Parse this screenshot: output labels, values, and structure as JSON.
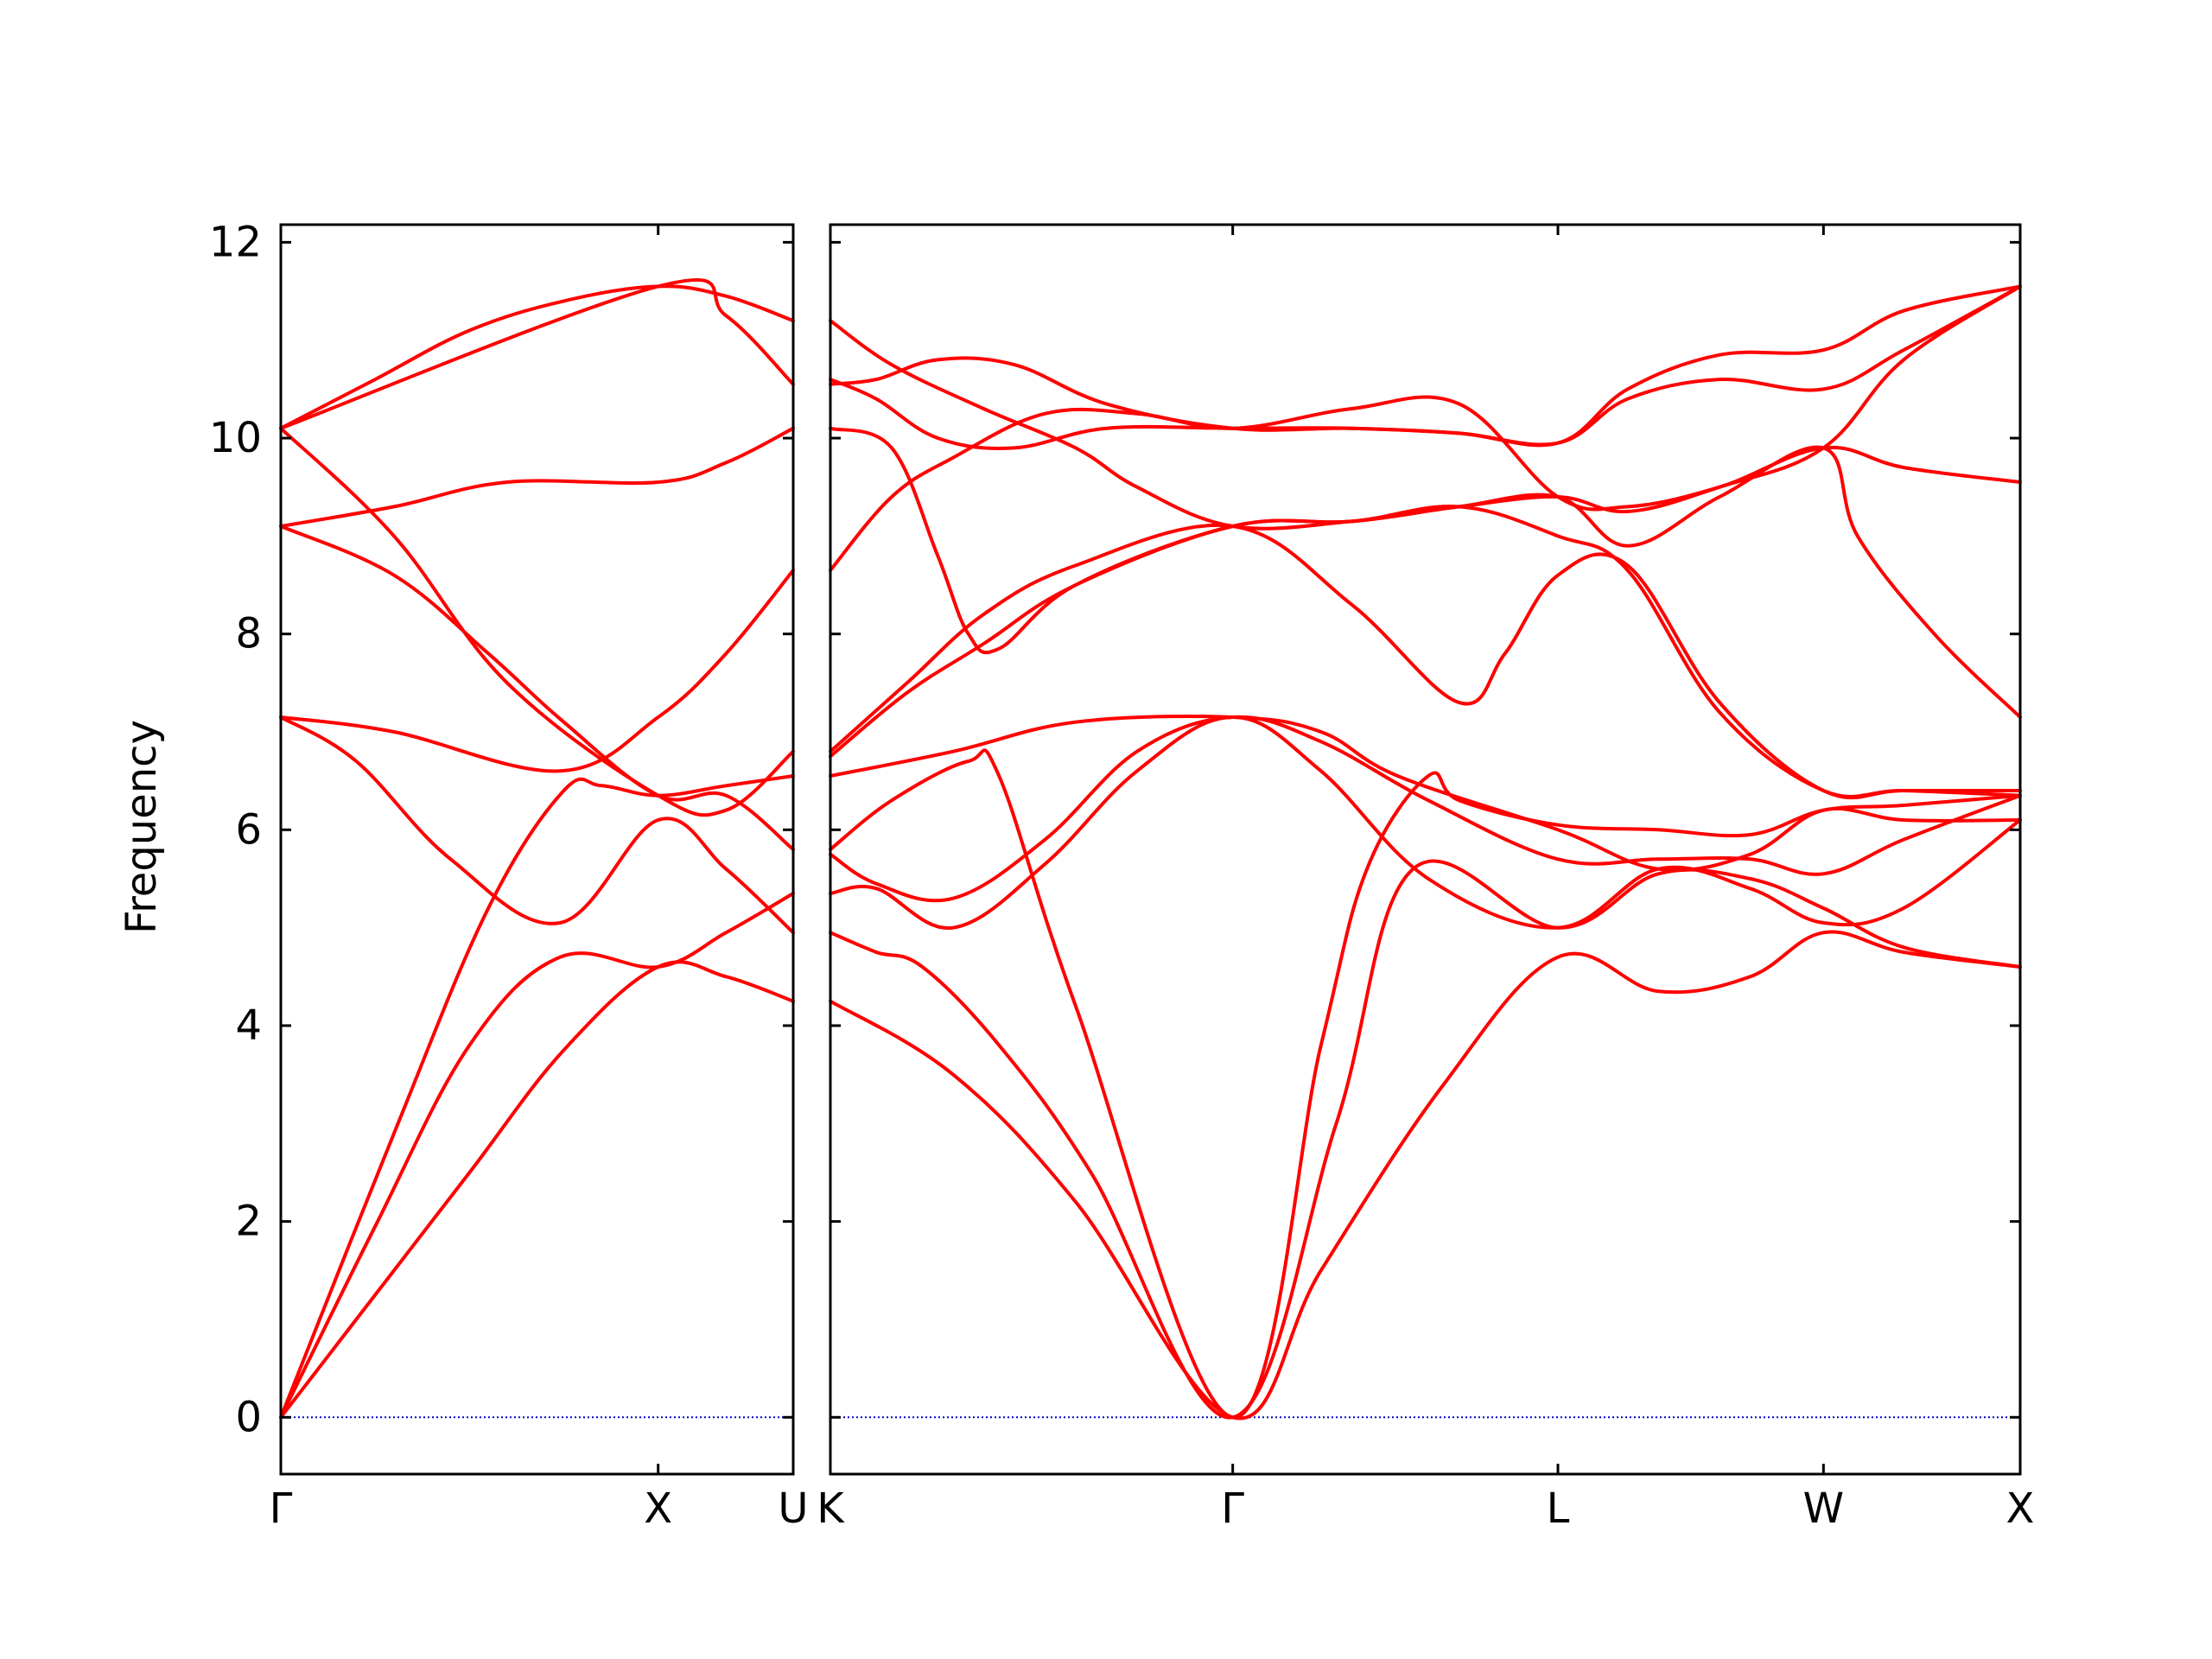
{
  "chart_data": {
    "type": "line",
    "title": "",
    "xlabel": "",
    "ylabel": "Frequency",
    "ylim": [
      -0.58,
      12.18
    ],
    "grid": false,
    "legend": "none",
    "colors": {
      "band": "#ff0000",
      "zero_line": "#0000cc",
      "axes": "#000000"
    },
    "y_ticks": [
      0,
      2,
      4,
      6,
      8,
      10,
      12
    ],
    "y_tick_labels": [
      "0",
      "2",
      "4",
      "6",
      "8",
      "10",
      "12"
    ],
    "panels": [
      {
        "name": "left-panel",
        "x_range": [
          0,
          1.3579
        ],
        "ticks": [
          {
            "x": 0,
            "label": "Γ"
          },
          {
            "x": 1.0,
            "label": "X"
          },
          {
            "x": 1.3579,
            "label": "U"
          }
        ],
        "bands": [
          {
            "x": [
              0,
              0.25,
              0.5,
              0.75,
              1.0,
              1.18,
              1.3579
            ],
            "y": [
              0,
              1.25,
              2.5,
              3.75,
              4.6,
              4.5,
              4.25
            ]
          },
          {
            "x": [
              0,
              0.25,
              0.5,
              0.74,
              1.0,
              1.18,
              1.3579
            ],
            "y": [
              0,
              1.95,
              3.8,
              4.7,
              4.6,
              4.95,
              5.35
            ]
          },
          {
            "x": [
              0,
              0.3,
              0.55,
              0.75,
              0.85,
              1.0,
              1.18,
              1.3579
            ],
            "y": [
              0,
              2.9,
              5.2,
              6.4,
              6.45,
              6.35,
              6.45,
              6.55
            ]
          },
          {
            "x": [
              0,
              0.2,
              0.45,
              0.74,
              1.0,
              1.18,
              1.3579
            ],
            "y": [
              7.15,
              6.7,
              5.7,
              5.05,
              6.1,
              5.6,
              4.95
            ]
          },
          {
            "x": [
              0,
              0.3,
              0.74,
              1.0,
              1.18,
              1.3579
            ],
            "y": [
              7.15,
              7.0,
              6.6,
              7.15,
              7.8,
              8.65
            ]
          },
          {
            "x": [
              0,
              0.3,
              0.55,
              0.75,
              1.0,
              1.18,
              1.3579
            ],
            "y": [
              9.1,
              8.6,
              7.8,
              7.1,
              6.35,
              6.35,
              5.8
            ]
          },
          {
            "x": [
              0,
              0.3,
              0.6,
              1.0,
              1.18,
              1.3579
            ],
            "y": [
              10.1,
              9.0,
              7.5,
              6.35,
              6.2,
              6.8
            ]
          },
          {
            "x": [
              0,
              0.3,
              0.6,
              1.0,
              1.18,
              1.3579
            ],
            "y": [
              9.1,
              9.3,
              9.55,
              9.55,
              9.75,
              10.1
            ]
          },
          {
            "x": [
              0,
              0.25,
              0.5,
              0.75,
              1.0,
              1.18,
              1.3579
            ],
            "y": [
              10.1,
              10.6,
              11.1,
              11.4,
              11.55,
              11.45,
              11.2
            ]
          },
          {
            "x": [
              0,
              1.0,
              1.18,
              1.3579
            ],
            "y": [
              10.1,
              11.55,
              11.25,
              10.55
            ]
          }
        ]
      },
      {
        "name": "right-panel",
        "x_range": [
          0,
          3.8802
        ],
        "ticks": [
          {
            "x": 0,
            "label": "K"
          },
          {
            "x": 1.3122,
            "label": "Γ"
          },
          {
            "x": 2.3727,
            "label": "L"
          },
          {
            "x": 3.2387,
            "label": "W"
          },
          {
            "x": 3.8802,
            "label": "X"
          }
        ],
        "bands": [
          {
            "x": [
              0,
              0.4,
              0.8,
              1.3122,
              1.6,
              2.0,
              2.3727,
              2.7,
              3.0,
              3.2387,
              3.5,
              3.8802
            ],
            "y": [
              4.25,
              3.5,
              2.2,
              0,
              1.5,
              3.4,
              4.7,
              4.35,
              4.5,
              4.95,
              4.75,
              4.6
            ]
          },
          {
            "x": [
              0,
              0.15,
              0.3,
              0.55,
              0.85,
              1.3122,
              1.65,
              1.9,
              2.3727,
              2.7,
              3.0,
              3.2387,
              3.5,
              3.8802
            ],
            "y": [
              4.95,
              4.75,
              4.6,
              3.8,
              2.5,
              0,
              3.0,
              5.6,
              5.0,
              5.55,
              5.5,
              5.2,
              4.8,
              4.6
            ]
          },
          {
            "x": [
              0,
              0.2,
              0.45,
              0.55,
              0.8,
              1.3122,
              1.6,
              1.75,
              1.95,
              2.05,
              2.3727,
              2.7,
              3.0,
              3.2387,
              3.5,
              3.8802
            ],
            "y": [
              5.8,
              6.3,
              6.7,
              6.55,
              4.2,
              0,
              3.8,
              5.6,
              6.55,
              6.3,
              6.05,
              6.0,
              5.95,
              6.2,
              6.25,
              6.35
            ]
          },
          {
            "x": [
              0,
              0.15,
              0.4,
              0.7,
              1.0,
              1.3122,
              1.6,
              1.95,
              2.3727,
              2.7,
              3.0,
              3.2387,
              3.5,
              3.8802
            ],
            "y": [
              5.35,
              5.4,
              5.0,
              5.65,
              6.6,
              7.15,
              6.6,
              5.5,
              5.0,
              5.6,
              5.4,
              5.05,
              5.2,
              6.1
            ]
          },
          {
            "x": [
              0,
              0.15,
              0.4,
              0.7,
              1.0,
              1.3122,
              1.6,
              1.95,
              2.3727,
              2.7,
              3.0,
              3.2387,
              3.5,
              3.8802
            ],
            "y": [
              5.75,
              5.45,
              5.3,
              5.9,
              6.8,
              7.15,
              6.9,
              6.3,
              5.7,
              5.7,
              5.7,
              5.55,
              5.9,
              6.35
            ]
          },
          {
            "x": [
              0,
              0.4,
              0.8,
              1.3122,
              1.6,
              1.85,
              2.3727,
              2.7,
              3.0,
              3.2387,
              3.5,
              3.8802
            ],
            "y": [
              6.55,
              6.8,
              7.1,
              7.15,
              7.0,
              6.55,
              6.0,
              5.6,
              5.75,
              6.2,
              6.1,
              6.1
            ]
          },
          {
            "x": [
              0,
              0.25,
              0.5,
              0.8,
              1.3122,
              1.7,
              2.05,
              2.2,
              2.3727,
              2.6,
              2.9,
              3.2387,
              3.5,
              3.8802
            ],
            "y": [
              6.8,
              7.5,
              8.2,
              8.7,
              9.1,
              8.3,
              7.3,
              7.8,
              8.6,
              8.7,
              7.3,
              6.4,
              6.4,
              6.4
            ]
          },
          {
            "x": [
              0,
              0.25,
              0.5,
              0.8,
              1.3122,
              1.7,
              2.05,
              2.3727,
              2.6,
              2.9,
              3.2387,
              3.5,
              3.8802
            ],
            "y": [
              6.75,
              7.4,
              7.9,
              8.5,
              9.1,
              9.15,
              9.3,
              9.0,
              8.65,
              7.2,
              6.4,
              6.4,
              6.35
            ]
          },
          {
            "x": [
              0,
              0.2,
              0.35,
              0.45,
              0.55,
              0.8,
              1.3122,
              1.7,
              2.05,
              2.3727,
              2.6,
              2.9,
              3.2387,
              3.35,
              3.6,
              3.8802
            ],
            "y": [
              10.1,
              9.9,
              8.8,
              8.0,
              7.85,
              8.5,
              9.1,
              9.15,
              9.3,
              9.4,
              8.9,
              9.4,
              9.9,
              9.0,
              8.0,
              7.15
            ]
          },
          {
            "x": [
              0,
              0.2,
              0.4,
              0.7,
              1.0,
              1.3122,
              1.7,
              2.05,
              2.3727,
              2.6,
              2.9,
              3.2387,
              3.5,
              3.8802
            ],
            "y": [
              8.65,
              9.4,
              9.8,
              10.25,
              10.25,
              10.1,
              10.3,
              10.35,
              9.4,
              9.3,
              9.5,
              9.9,
              9.7,
              9.55
            ]
          },
          {
            "x": [
              0,
              0.15,
              0.35,
              0.6,
              0.9,
              1.3122,
              1.7,
              2.05,
              2.3727,
              2.6,
              2.9,
              3.2387,
              3.5,
              3.8802
            ],
            "y": [
              10.6,
              10.4,
              10.0,
              9.9,
              10.1,
              10.1,
              10.1,
              10.05,
              9.95,
              10.4,
              10.6,
              10.5,
              10.9,
              11.55
            ]
          },
          {
            "x": [
              0,
              0.2,
              0.5,
              0.8,
              1.0,
              1.3122,
              1.7,
              2.05,
              2.3727,
              2.6,
              2.9,
              3.2387,
              3.5,
              3.8802
            ],
            "y": [
              11.2,
              10.75,
              10.3,
              9.9,
              9.5,
              9.1,
              9.15,
              9.3,
              9.4,
              9.25,
              9.5,
              9.9,
              10.8,
              11.55
            ]
          },
          {
            "x": [
              0,
              0.15,
              0.35,
              0.6,
              0.9,
              1.3122,
              1.7,
              2.05,
              2.3727,
              2.6,
              2.9,
              3.2387,
              3.5,
              3.8802
            ],
            "y": [
              10.55,
              10.6,
              10.8,
              10.75,
              10.35,
              10.1,
              10.1,
              10.05,
              9.95,
              10.5,
              10.85,
              10.9,
              11.3,
              11.55
            ]
          }
        ]
      }
    ]
  }
}
